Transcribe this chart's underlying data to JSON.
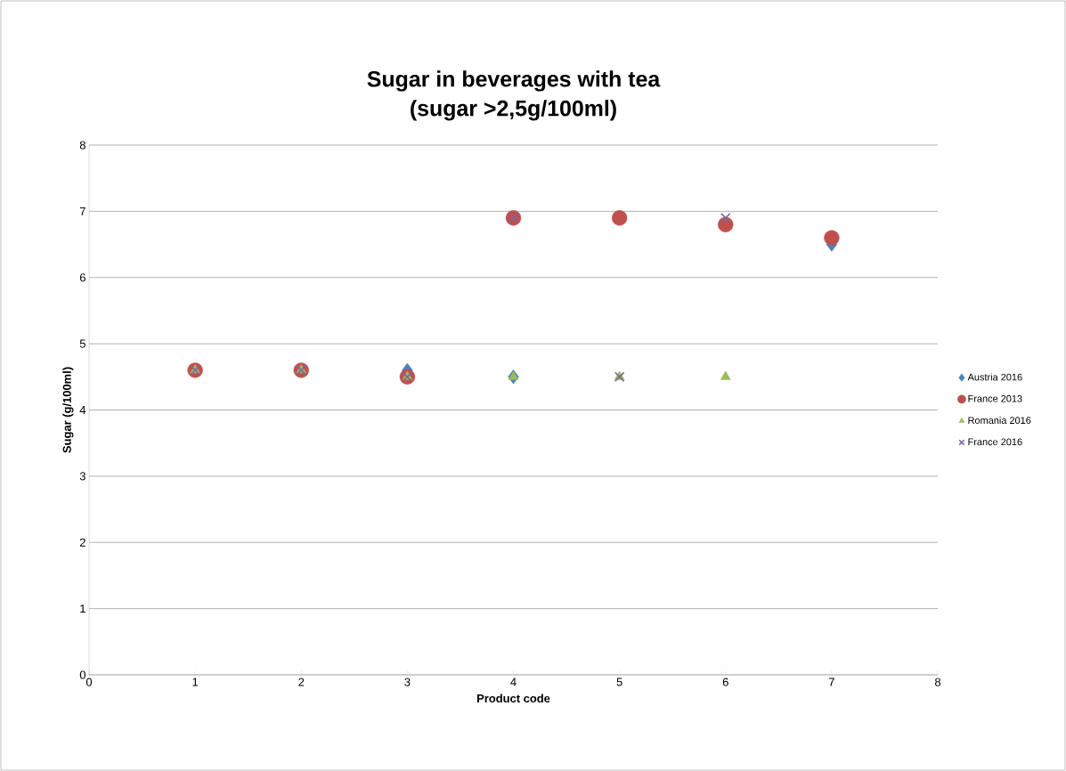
{
  "chart_data": {
    "type": "scatter",
    "title": "Sugar in beverages with tea\n(sugar >2,5g/100ml)",
    "xlabel": "Product code",
    "ylabel": "Sugar (g/100ml)",
    "x": [
      1,
      2,
      3,
      4,
      5,
      6,
      7
    ],
    "series": [
      {
        "name": "Austria 2016",
        "color": "#4f81bd",
        "marker": "diamond",
        "values": [
          null,
          null,
          4.6,
          4.5,
          null,
          null,
          6.5
        ]
      },
      {
        "name": "France 2013",
        "color": "#c0504d",
        "marker": "circle",
        "values": [
          4.6,
          4.6,
          4.5,
          6.9,
          6.9,
          6.8,
          6.6
        ]
      },
      {
        "name": "Romania 2016",
        "color": "#9bbb59",
        "marker": "triangle",
        "values": [
          4.6,
          4.6,
          4.5,
          4.5,
          4.5,
          4.5,
          null
        ]
      },
      {
        "name": "France 2016",
        "color": "#8064a2",
        "marker": "cross",
        "values": [
          4.6,
          4.6,
          4.5,
          6.9,
          4.5,
          6.9,
          null
        ]
      }
    ],
    "xlim": [
      0,
      8
    ],
    "xticks": [
      0,
      1,
      2,
      3,
      4,
      5,
      6,
      7,
      8
    ],
    "ylim": [
      0,
      8
    ],
    "yticks": [
      0,
      1,
      2,
      3,
      4,
      5,
      6,
      7,
      8
    ],
    "grid": "y",
    "legend": "right"
  }
}
